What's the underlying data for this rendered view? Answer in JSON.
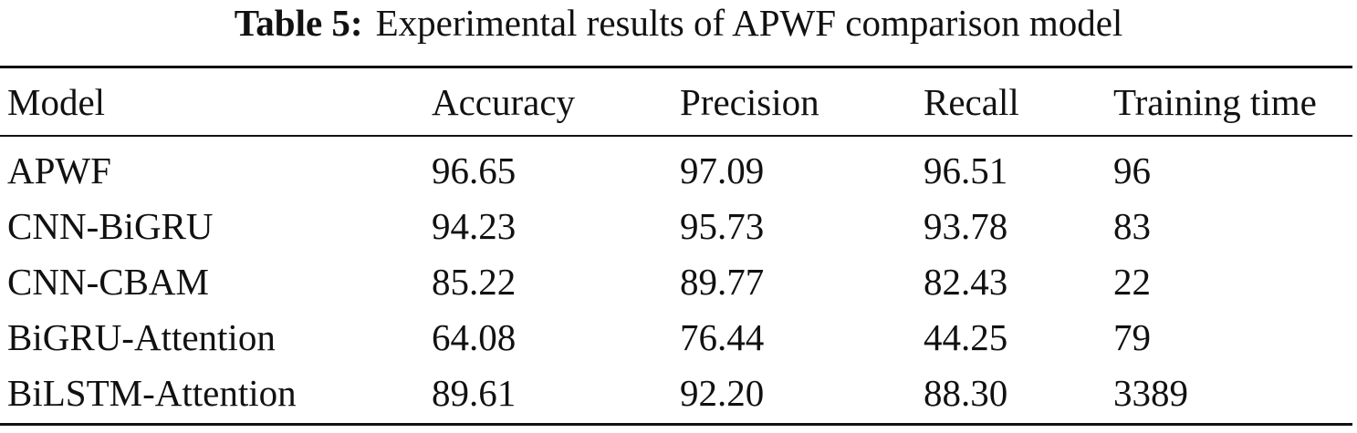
{
  "caption": {
    "label": "Table 5:",
    "text": "Experimental results of APWF comparison model"
  },
  "table": {
    "header": [
      "Model",
      "Accuracy",
      "Precision",
      "Recall",
      "Training time"
    ],
    "rows": [
      [
        "APWF",
        "96.65",
        "97.09",
        "96.51",
        "96"
      ],
      [
        "CNN-BiGRU",
        "94.23",
        "95.73",
        "93.78",
        "83"
      ],
      [
        "CNN-CBAM",
        "85.22",
        "89.77",
        "82.43",
        "22"
      ],
      [
        "BiGRU-Attention",
        "64.08",
        "76.44",
        "44.25",
        "79"
      ],
      [
        "BiLSTM-Attention",
        "89.61",
        "92.20",
        "88.30",
        "3389"
      ]
    ]
  }
}
